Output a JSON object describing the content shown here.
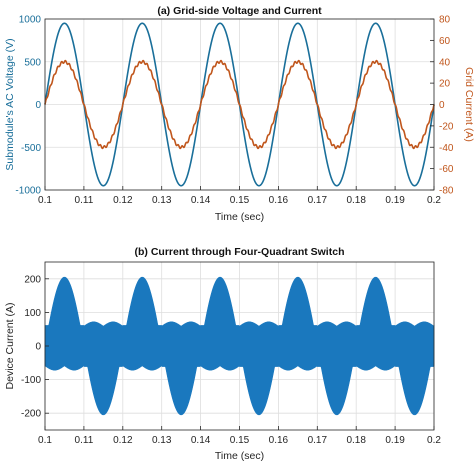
{
  "chart_data": [
    {
      "type": "line",
      "title": "(a) Grid-side Voltage and Current",
      "xlabel": "Time (sec)",
      "ylabel_left": "Submodule's AC Voltage (V)",
      "ylabel_right": "Grid Current (A)",
      "xlim": [
        0.1,
        0.2
      ],
      "ylim_left": [
        -1000,
        1000
      ],
      "ylim_right": [
        -80,
        80
      ],
      "xticks": [
        "0.1",
        "0.11",
        "0.12",
        "0.13",
        "0.14",
        "0.15",
        "0.16",
        "0.17",
        "0.18",
        "0.19",
        "0.2"
      ],
      "yticks_left": [
        "1000",
        "500",
        "0",
        "-500",
        "-1000"
      ],
      "yticks_right": [
        "80",
        "60",
        "40",
        "20",
        "0",
        "-20",
        "-40",
        "-60",
        "-80"
      ],
      "grid": true,
      "series": [
        {
          "name": "",
          "axis": "left",
          "color": "#1a6f9a",
          "frequency_hz": 50,
          "amplitude": 950,
          "phase_deg": 0,
          "x": [
            0.1,
            0.105,
            0.11,
            0.115,
            0.12,
            0.125,
            0.13,
            0.135,
            0.14,
            0.145,
            0.15,
            0.155,
            0.16,
            0.165,
            0.17,
            0.175,
            0.18,
            0.185,
            0.19,
            0.195,
            0.2
          ],
          "y": [
            0,
            950,
            0,
            -950,
            0,
            950,
            0,
            -950,
            0,
            950,
            0,
            -950,
            0,
            950,
            0,
            -950,
            0,
            950,
            0,
            -950,
            0
          ]
        },
        {
          "name": "",
          "axis": "right",
          "color": "#c0561c",
          "frequency_hz": 50,
          "amplitude": 40,
          "phase_deg": 0,
          "x": [
            0.1,
            0.105,
            0.11,
            0.115,
            0.12,
            0.125,
            0.13,
            0.135,
            0.14,
            0.145,
            0.15,
            0.155,
            0.16,
            0.165,
            0.17,
            0.175,
            0.18,
            0.185,
            0.19,
            0.195,
            0.2
          ],
          "y": [
            0,
            40,
            0,
            -40,
            0,
            40,
            0,
            -40,
            0,
            40,
            0,
            -40,
            0,
            40,
            0,
            -40,
            0,
            40,
            0,
            -40,
            0
          ]
        }
      ]
    },
    {
      "type": "area",
      "title": "(b) Current through Four-Quadrant Switch",
      "xlabel": "Time (sec)",
      "ylabel": "Device Current (A)",
      "xlim": [
        0.1,
        0.2
      ],
      "ylim": [
        -250,
        250
      ],
      "xticks": [
        "0.1",
        "0.11",
        "0.12",
        "0.13",
        "0.14",
        "0.15",
        "0.16",
        "0.17",
        "0.18",
        "0.19",
        "0.2"
      ],
      "yticks": [
        "200",
        "100",
        "0",
        "-100",
        "-200"
      ],
      "grid": true,
      "color": "#1a78be",
      "description_points": {
        "x": [
          0.1,
          0.1025,
          0.105,
          0.1075,
          0.11,
          0.1125,
          0.115,
          0.1175,
          0.12
        ],
        "upper": [
          60,
          175,
          205,
          175,
          60,
          65,
          72,
          65,
          60
        ],
        "lower": [
          -60,
          -65,
          -72,
          -65,
          -60,
          -175,
          -205,
          -175,
          -60
        ]
      },
      "period_sec": 0.02,
      "positive_lobe_peak": 205,
      "negative_lobe_peak": -205,
      "small_lobe_peak": 72
    }
  ]
}
